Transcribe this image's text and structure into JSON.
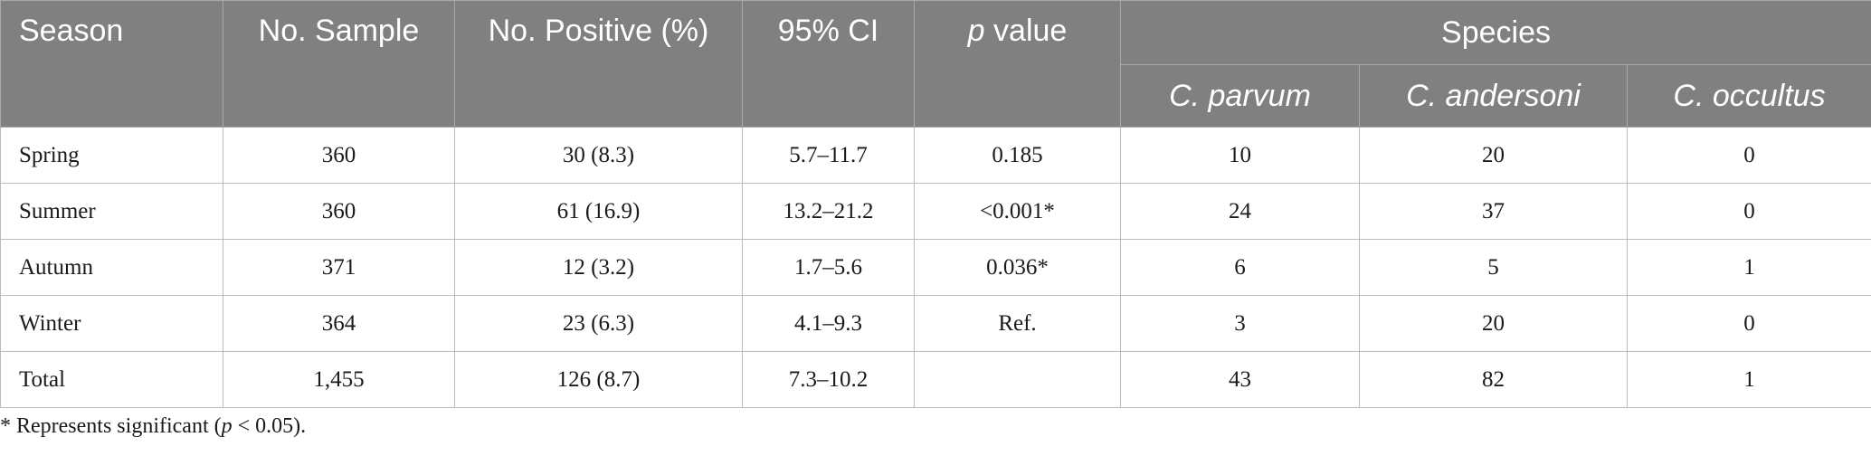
{
  "table": {
    "headers": {
      "season": "Season",
      "no_sample": "No. Sample",
      "no_positive": "No. Positive (%)",
      "ci": "95% CI",
      "p_italic": "p",
      "p_rest": " value",
      "species": "Species",
      "species_cols": [
        "C. parvum",
        "C. andersoni",
        "C. occultus"
      ]
    },
    "rows": [
      {
        "season": "Spring",
        "samples": "360",
        "positive": "30 (8.3)",
        "ci": "5.7–11.7",
        "p": "0.185",
        "parvum": "10",
        "andersoni": "20",
        "occultus": "0"
      },
      {
        "season": "Summer",
        "samples": "360",
        "positive": "61 (16.9)",
        "ci": "13.2–21.2",
        "p": "<0.001*",
        "parvum": "24",
        "andersoni": "37",
        "occultus": "0"
      },
      {
        "season": "Autumn",
        "samples": "371",
        "positive": "12 (3.2)",
        "ci": "1.7–5.6",
        "p": "0.036*",
        "parvum": "6",
        "andersoni": "5",
        "occultus": "1"
      },
      {
        "season": "Winter",
        "samples": "364",
        "positive": "23 (6.3)",
        "ci": "4.1–9.3",
        "p": "Ref.",
        "parvum": "3",
        "andersoni": "20",
        "occultus": "0"
      },
      {
        "season": "Total",
        "samples": "1,455",
        "positive": "126 (8.7)",
        "ci": "7.3–10.2",
        "p": "",
        "parvum": "43",
        "andersoni": "82",
        "occultus": "1"
      }
    ]
  },
  "footnote": {
    "prefix": "* Represents significant (",
    "p_italic": "p",
    "suffix": " < 0.05)."
  }
}
